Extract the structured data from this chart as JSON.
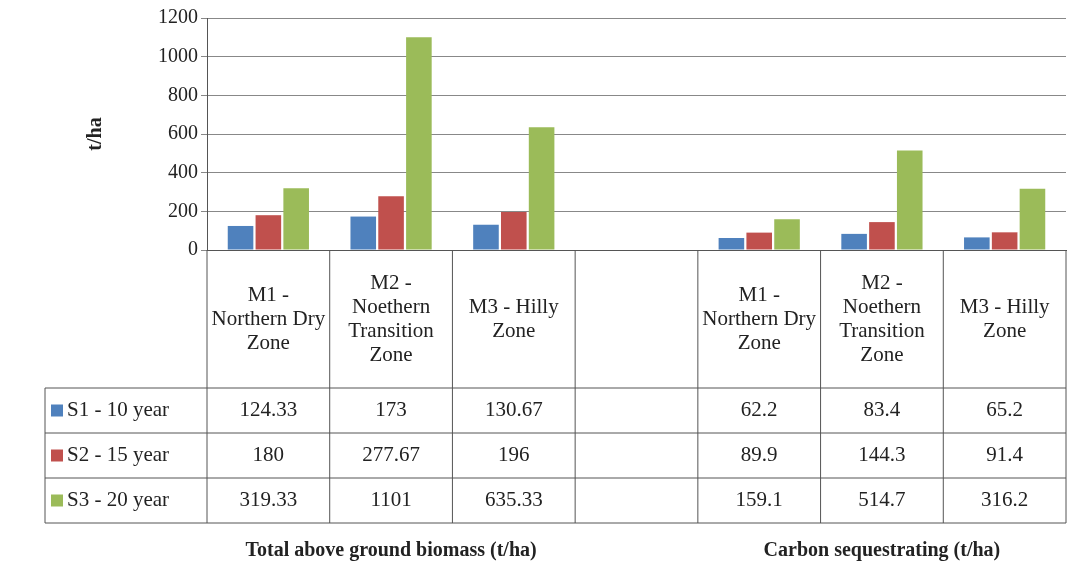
{
  "chart_data": {
    "type": "bar",
    "ylabel": "t/ha",
    "categories": [
      "M1 - Northern Dry Zone",
      "M2 - Noethern Transition Zone",
      "M3 - Hilly Zone",
      null,
      "M1 - Northern Dry Zone",
      "M2 - Noethern Transition Zone",
      "M3 - Hilly Zone"
    ],
    "series": [
      {
        "name": "S1 - 10 year",
        "color": "#4f81bd",
        "values": [
          124.33,
          173,
          130.67,
          null,
          62.2,
          83.4,
          65.2
        ]
      },
      {
        "name": "S2 - 15 year",
        "color": "#c0504d",
        "values": [
          180,
          277.67,
          196,
          null,
          89.9,
          144.3,
          91.4
        ]
      },
      {
        "name": "S3 - 20 year",
        "color": "#9bbb59",
        "values": [
          319.33,
          1101,
          635.33,
          null,
          159.1,
          514.7,
          316.2
        ]
      }
    ],
    "ylim": [
      0,
      1200
    ],
    "yticks": [
      0,
      200,
      400,
      600,
      800,
      1000,
      1200
    ],
    "grid": "y",
    "legend": "bottom left",
    "data_labels": true,
    "annotations": [
      "Total above ground biomass (t/ha)",
      "Carbon sequestrating (t/ha)"
    ]
  }
}
